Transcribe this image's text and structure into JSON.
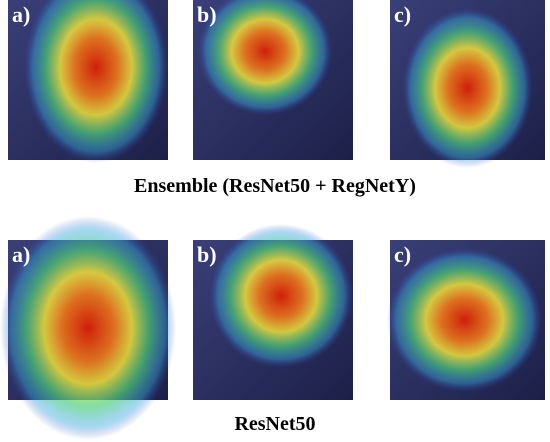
{
  "rows": [
    {
      "panels": [
        "a)",
        "b)",
        "c)"
      ],
      "caption": "Ensemble (ResNet50 + RegNetY)"
    },
    {
      "panels": [
        "a)",
        "b)",
        "c)"
      ],
      "caption": "ResNet50"
    }
  ]
}
